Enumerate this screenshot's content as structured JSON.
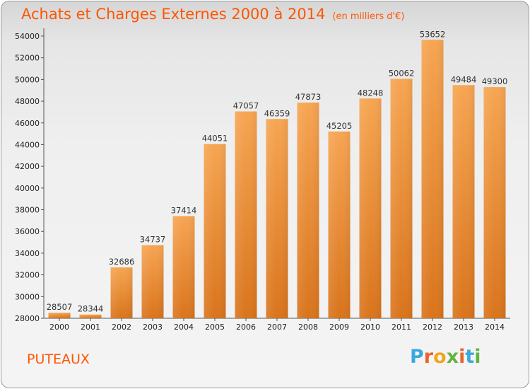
{
  "header": {
    "title": "Achats et Charges Externes 2000 à 2014",
    "subtitle": "(en milliers d'€)"
  },
  "footer": {
    "location": "PUTEAUX",
    "logo_letters": [
      "P",
      "r",
      "o",
      "x",
      "i",
      "t",
      "i"
    ]
  },
  "colors": {
    "accent": "#ff5500",
    "bar_light": "#f6a552",
    "bar_dark": "#d9741c",
    "logo": [
      "#3ca8e0",
      "#e8652a",
      "#f1a522",
      "#63b345",
      "#e8652a",
      "#3ca8e0",
      "#63b345"
    ]
  },
  "chart_data": {
    "type": "bar",
    "title": "Achats et Charges Externes 2000 à 2014",
    "subtitle": "(en milliers d'€)",
    "categories": [
      "2000",
      "2001",
      "2002",
      "2003",
      "2004",
      "2005",
      "2006",
      "2007",
      "2008",
      "2009",
      "2010",
      "2011",
      "2012",
      "2013",
      "2014"
    ],
    "values": [
      28507,
      28344,
      32686,
      34737,
      37414,
      44051,
      47057,
      46359,
      47873,
      45205,
      48248,
      50062,
      53652,
      49484,
      49300
    ],
    "ylim": [
      28000,
      54000
    ],
    "yticks": [
      28000,
      30000,
      32000,
      34000,
      36000,
      38000,
      40000,
      42000,
      44000,
      46000,
      48000,
      50000,
      52000,
      54000
    ],
    "grid": false,
    "xlabel": "",
    "ylabel": ""
  }
}
